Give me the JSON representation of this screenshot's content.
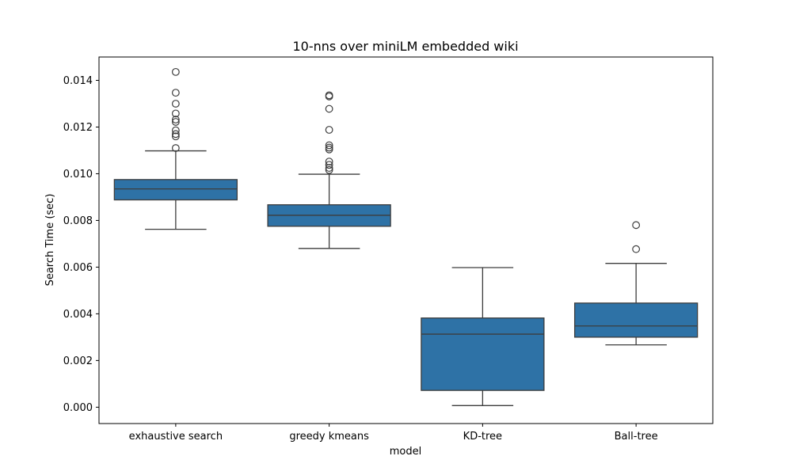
{
  "chart_data": {
    "type": "box",
    "title": "10-nns over miniLM embedded wiki",
    "xlabel": "model",
    "ylabel": "Search Time (sec)",
    "ylim": [
      -0.0007,
      0.015
    ],
    "yticks": [
      0.0,
      0.002,
      0.004,
      0.006,
      0.008,
      0.01,
      0.012,
      0.014
    ],
    "ytick_labels": [
      "0.000",
      "0.002",
      "0.004",
      "0.006",
      "0.008",
      "0.010",
      "0.012",
      "0.014"
    ],
    "categories": [
      "exhaustive search",
      "greedy kmeans",
      "KD-tree",
      "Ball-tree"
    ],
    "box_color": "#2e72a6",
    "line_color": "#3d3d3d",
    "grid": false,
    "boxes": [
      {
        "category": "exhaustive search",
        "whisker_low": 0.00762,
        "q1": 0.00888,
        "median": 0.00935,
        "q3": 0.00975,
        "whisker_high": 0.01098,
        "outliers": [
          0.01436,
          0.01347,
          0.013,
          0.01258,
          0.01232,
          0.01222,
          0.01186,
          0.0117,
          0.0116,
          0.0111
        ]
      },
      {
        "category": "greedy kmeans",
        "whisker_low": 0.0068,
        "q1": 0.00775,
        "median": 0.00822,
        "q3": 0.00867,
        "whisker_high": 0.00998,
        "outliers": [
          0.01336,
          0.01331,
          0.01278,
          0.01188,
          0.01122,
          0.01112,
          0.01104,
          0.01052,
          0.01038,
          0.01025,
          0.01016
        ]
      },
      {
        "category": "KD-tree",
        "whisker_low": 7e-05,
        "q1": 0.00072,
        "median": 0.00313,
        "q3": 0.00382,
        "whisker_high": 0.00598,
        "outliers": []
      },
      {
        "category": "Ball-tree",
        "whisker_low": 0.00267,
        "q1": 0.003,
        "median": 0.00348,
        "q3": 0.00446,
        "whisker_high": 0.00616,
        "outliers": [
          0.0078,
          0.00677
        ]
      }
    ]
  }
}
